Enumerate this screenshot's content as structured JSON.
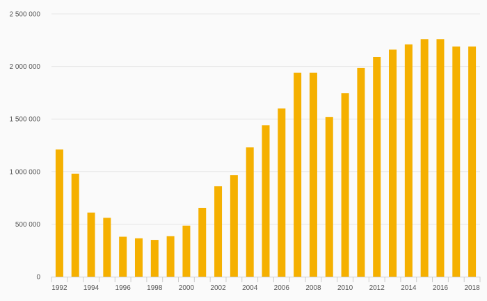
{
  "chart_data": {
    "type": "bar",
    "title": "",
    "xlabel": "",
    "ylabel": "",
    "categories": [
      "1992",
      "1993",
      "1994",
      "1995",
      "1996",
      "1997",
      "1998",
      "1999",
      "2000",
      "2001",
      "2002",
      "2003",
      "2004",
      "2005",
      "2006",
      "2007",
      "2008",
      "2009",
      "2010",
      "2011",
      "2012",
      "2013",
      "2014",
      "2015",
      "2016",
      "2017",
      "2018"
    ],
    "series": [
      {
        "values": [
          1210000,
          980000,
          610000,
          560000,
          380000,
          365000,
          350000,
          385000,
          485000,
          655000,
          860000,
          965000,
          1230000,
          1440000,
          1600000,
          1940000,
          1940000,
          1520000,
          1745000,
          1985000,
          2090000,
          2160000,
          2210000,
          2260000,
          2260000,
          2190000,
          2190000
        ],
        "color": "#f5b000"
      }
    ],
    "ylim": [
      0,
      2500000
    ],
    "y_ticks": [
      0,
      500000,
      1000000,
      1500000,
      2000000,
      2500000
    ],
    "y_tick_labels": [
      "0",
      "500 000",
      "1 000 000",
      "1 500 000",
      "2 000 000",
      "2 500 000"
    ],
    "x_tick_labels": [
      "1992",
      "1994",
      "1996",
      "1998",
      "2000",
      "2002",
      "2004",
      "2006",
      "2008",
      "2010",
      "2012",
      "2014",
      "2016",
      "2018"
    ],
    "grid": true,
    "legend": "none"
  }
}
